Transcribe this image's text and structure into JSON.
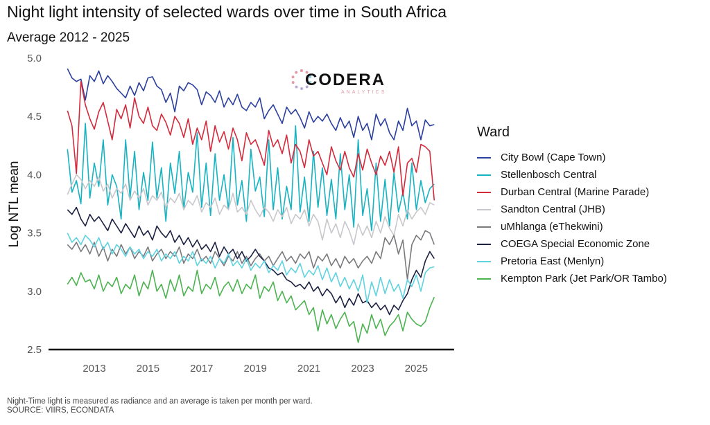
{
  "chart_data": {
    "type": "line",
    "title": "Night light intensity of selected wards over time in South Africa",
    "subtitle": "Average 2012 - 2025",
    "xlabel": "",
    "ylabel": "Log NTL mean",
    "xlim": [
      2011.97,
      2026.4
    ],
    "ylim": [
      2.5,
      5.0
    ],
    "x_ticks": [
      "2013",
      "2015",
      "2017",
      "2019",
      "2021",
      "2023",
      "2025"
    ],
    "x_tick_values": [
      2013,
      2015,
      2017,
      2019,
      2021,
      2023,
      2025
    ],
    "y_ticks": [
      "2.5",
      "3.0",
      "3.5",
      "4.0",
      "4.5",
      "5.0"
    ],
    "y_tick_values": [
      2.5,
      3.0,
      3.5,
      4.0,
      4.5,
      5.0
    ],
    "grid": false,
    "legend_title": "Ward",
    "legend_position": "right",
    "x_start": 2012.0,
    "x_step": 0.1667,
    "series": [
      {
        "name": "City Bowl (Cape Town)",
        "color": "#2b3f9e",
        "values": [
          4.91,
          4.83,
          4.8,
          4.82,
          4.64,
          4.85,
          4.8,
          4.89,
          4.78,
          4.85,
          4.8,
          4.74,
          4.7,
          4.66,
          4.76,
          4.68,
          4.79,
          4.72,
          4.83,
          4.84,
          4.76,
          4.73,
          4.62,
          4.7,
          4.54,
          4.76,
          4.72,
          4.79,
          4.77,
          4.73,
          4.6,
          4.71,
          4.68,
          4.62,
          4.72,
          4.58,
          4.66,
          4.6,
          4.69,
          4.58,
          4.55,
          4.62,
          4.58,
          4.66,
          4.48,
          4.55,
          4.6,
          4.52,
          4.44,
          4.58,
          4.52,
          4.56,
          4.49,
          4.4,
          4.54,
          4.45,
          4.5,
          4.46,
          4.52,
          4.44,
          4.38,
          4.49,
          4.4,
          4.46,
          4.32,
          4.5,
          4.38,
          4.44,
          4.3,
          4.52,
          4.42,
          4.48,
          4.36,
          4.3,
          4.46,
          4.38,
          4.57,
          4.42,
          4.46,
          4.3,
          4.47,
          4.42,
          4.43
        ]
      },
      {
        "name": "Stellenbosch Central",
        "color": "#17b3c2",
        "values": [
          4.22,
          3.85,
          3.95,
          3.75,
          4.44,
          3.8,
          4.1,
          3.9,
          4.3,
          3.74,
          4.0,
          3.9,
          3.62,
          4.3,
          3.8,
          4.2,
          3.7,
          4.02,
          3.78,
          4.28,
          3.8,
          4.06,
          3.6,
          4.1,
          3.84,
          4.2,
          3.7,
          4.02,
          3.85,
          4.36,
          3.72,
          4.1,
          3.65,
          4.18,
          3.78,
          4.0,
          3.7,
          4.32,
          3.74,
          3.95,
          3.6,
          4.22,
          3.86,
          3.98,
          3.64,
          4.3,
          3.7,
          4.06,
          3.62,
          3.9,
          3.7,
          4.42,
          3.68,
          3.98,
          3.6,
          4.2,
          3.72,
          4.06,
          3.65,
          3.96,
          3.62,
          4.18,
          3.7,
          4.0,
          3.55,
          4.3,
          3.65,
          3.88,
          3.52,
          4.1,
          3.6,
          3.96,
          3.56,
          4.02,
          3.68,
          3.85,
          3.62,
          4.1,
          3.7,
          3.95,
          3.76,
          3.88,
          3.92
        ]
      },
      {
        "name": "Durban Central (Marine Parade)",
        "color": "#d42a3c",
        "values": [
          4.55,
          4.42,
          4.01,
          4.8,
          4.6,
          4.48,
          4.39,
          4.54,
          4.62,
          4.46,
          4.3,
          4.56,
          4.48,
          4.6,
          4.4,
          4.66,
          4.5,
          4.44,
          4.58,
          4.42,
          4.38,
          4.52,
          4.45,
          4.34,
          4.5,
          4.44,
          4.32,
          4.48,
          4.26,
          4.4,
          4.3,
          4.46,
          4.2,
          4.42,
          4.28,
          4.37,
          4.22,
          4.4,
          4.3,
          4.12,
          4.36,
          4.26,
          4.3,
          4.2,
          4.08,
          4.38,
          4.24,
          4.3,
          4.18,
          4.34,
          4.1,
          4.26,
          4.2,
          4.06,
          4.3,
          4.16,
          4.2,
          4.1,
          4.0,
          4.24,
          4.12,
          4.04,
          4.2,
          4.06,
          3.98,
          4.18,
          4.04,
          4.22,
          4.1,
          4.0,
          4.16,
          4.08,
          4.2,
          4.02,
          4.24,
          3.82,
          4.1,
          4.14,
          4.02,
          4.26,
          4.24,
          4.2,
          3.78
        ]
      },
      {
        "name": "Sandton Central (JHB)",
        "color": "#c8c8cc",
        "values": [
          3.83,
          3.92,
          4.0,
          3.96,
          3.88,
          3.95,
          3.9,
          3.98,
          3.86,
          3.92,
          3.8,
          3.88,
          3.84,
          3.92,
          3.78,
          3.86,
          3.8,
          3.88,
          3.74,
          3.82,
          3.78,
          3.85,
          3.72,
          3.8,
          3.76,
          3.84,
          3.7,
          3.78,
          3.74,
          3.82,
          3.68,
          3.76,
          3.72,
          3.8,
          3.66,
          3.74,
          3.7,
          3.84,
          3.68,
          3.72,
          3.66,
          3.78,
          3.7,
          3.64,
          3.72,
          3.68,
          3.6,
          3.7,
          3.64,
          3.72,
          3.58,
          3.66,
          3.62,
          3.7,
          3.56,
          3.66,
          3.6,
          3.44,
          3.62,
          3.5,
          3.58,
          3.46,
          3.6,
          3.52,
          3.4,
          3.58,
          3.48,
          3.56,
          3.46,
          3.6,
          3.5,
          3.64,
          3.54,
          3.48,
          3.66,
          3.56,
          3.7,
          3.62,
          3.68,
          3.72,
          3.66,
          3.76,
          3.74
        ]
      },
      {
        "name": "uMhlanga (eThekwini)",
        "color": "#7a7a7e",
        "values": [
          3.4,
          3.36,
          3.42,
          3.34,
          3.4,
          3.32,
          3.42,
          3.3,
          3.38,
          3.26,
          3.36,
          3.3,
          3.4,
          3.32,
          3.38,
          3.28,
          3.34,
          3.3,
          3.38,
          3.26,
          3.32,
          3.36,
          3.28,
          3.34,
          3.3,
          3.38,
          3.24,
          3.32,
          3.28,
          3.36,
          3.26,
          3.3,
          3.24,
          3.34,
          3.28,
          3.22,
          3.3,
          3.26,
          3.34,
          3.24,
          3.3,
          3.22,
          3.28,
          3.32,
          3.26,
          3.3,
          3.22,
          3.28,
          3.34,
          3.26,
          3.3,
          3.24,
          3.32,
          3.28,
          3.34,
          3.2,
          3.3,
          3.26,
          3.32,
          3.22,
          3.28,
          3.2,
          3.3,
          3.24,
          3.28,
          3.2,
          3.26,
          3.3,
          3.24,
          3.34,
          3.28,
          3.46,
          3.4,
          3.48,
          3.32,
          3.44,
          3.1,
          3.4,
          3.48,
          3.44,
          3.52,
          3.5,
          3.4
        ]
      },
      {
        "name": "COEGA Special Economic Zone",
        "color": "#1c2142",
        "values": [
          3.7,
          3.66,
          3.72,
          3.62,
          3.56,
          3.66,
          3.6,
          3.64,
          3.58,
          3.52,
          3.62,
          3.56,
          3.5,
          3.58,
          3.52,
          3.46,
          3.56,
          3.48,
          3.52,
          3.44,
          3.56,
          3.5,
          3.46,
          3.52,
          3.42,
          3.48,
          3.4,
          3.46,
          3.38,
          3.44,
          3.36,
          3.4,
          3.34,
          3.42,
          3.3,
          3.38,
          3.32,
          3.36,
          3.28,
          3.34,
          3.26,
          3.3,
          3.36,
          3.3,
          3.26,
          3.2,
          3.18,
          3.14,
          3.16,
          3.1,
          3.08,
          3.04,
          3.06,
          3.02,
          3.08,
          3.0,
          3.04,
          2.96,
          3.02,
          2.98,
          2.9,
          2.96,
          2.86,
          2.94,
          2.88,
          2.98,
          2.9,
          2.92,
          2.86,
          2.9,
          2.84,
          2.88,
          2.8,
          2.88,
          2.84,
          2.92,
          2.98,
          3.1,
          3.18,
          3.12,
          3.26,
          3.34,
          3.28
        ]
      },
      {
        "name": "Pretoria East (Menlyn)",
        "color": "#5fd3e0",
        "values": [
          3.5,
          3.42,
          3.46,
          3.4,
          3.48,
          3.44,
          3.38,
          3.46,
          3.36,
          3.42,
          3.32,
          3.4,
          3.36,
          3.3,
          3.38,
          3.32,
          3.36,
          3.28,
          3.34,
          3.3,
          3.36,
          3.26,
          3.32,
          3.28,
          3.34,
          3.24,
          3.3,
          3.26,
          3.34,
          3.22,
          3.28,
          3.24,
          3.3,
          3.2,
          3.28,
          3.24,
          3.32,
          3.22,
          3.26,
          3.2,
          3.28,
          3.18,
          3.24,
          3.2,
          3.26,
          3.16,
          3.22,
          3.18,
          3.26,
          3.14,
          3.2,
          3.16,
          3.24,
          3.12,
          3.18,
          3.14,
          3.22,
          3.1,
          3.2,
          3.08,
          3.16,
          3.04,
          3.12,
          3.02,
          3.1,
          3.0,
          3.14,
          2.9,
          3.08,
          2.96,
          3.12,
          2.98,
          3.1,
          3.0,
          3.06,
          2.94,
          3.1,
          3.04,
          3.14,
          3.0,
          3.16,
          3.2,
          3.21
        ]
      },
      {
        "name": "Kempton Park (Jet Park/OR Tambo)",
        "color": "#4cb350",
        "values": [
          3.06,
          3.12,
          3.05,
          3.16,
          3.08,
          3.1,
          3.02,
          3.14,
          3.0,
          3.08,
          3.04,
          3.12,
          2.98,
          3.06,
          3.02,
          3.14,
          2.96,
          3.08,
          3.02,
          3.18,
          3.0,
          3.06,
          2.94,
          3.1,
          3.0,
          3.14,
          2.96,
          3.04,
          3.0,
          3.18,
          2.98,
          3.06,
          3.02,
          3.12,
          2.96,
          3.04,
          3.08,
          3.0,
          3.1,
          2.98,
          3.06,
          3.02,
          3.14,
          2.94,
          3.04,
          3.0,
          3.08,
          2.92,
          3.0,
          2.9,
          2.96,
          2.84,
          2.88,
          2.92,
          2.8,
          2.86,
          2.66,
          2.84,
          2.72,
          2.8,
          2.68,
          2.76,
          2.82,
          2.7,
          2.74,
          2.56,
          2.72,
          2.64,
          2.8,
          2.68,
          2.76,
          2.62,
          2.7,
          2.74,
          2.8,
          2.66,
          2.82,
          2.76,
          2.72,
          2.7,
          2.74,
          2.86,
          2.95
        ]
      }
    ],
    "annotations": [
      "CODERA",
      "ANALYTICS"
    ]
  },
  "caption": {
    "note": "Night-Time light is measured as radiance and an average is taken per month per ward.",
    "source": "SOURCE: VIIRS, ECONDATA"
  },
  "logo": {
    "name": "CODERA",
    "tagline": "ANALYTICS"
  }
}
